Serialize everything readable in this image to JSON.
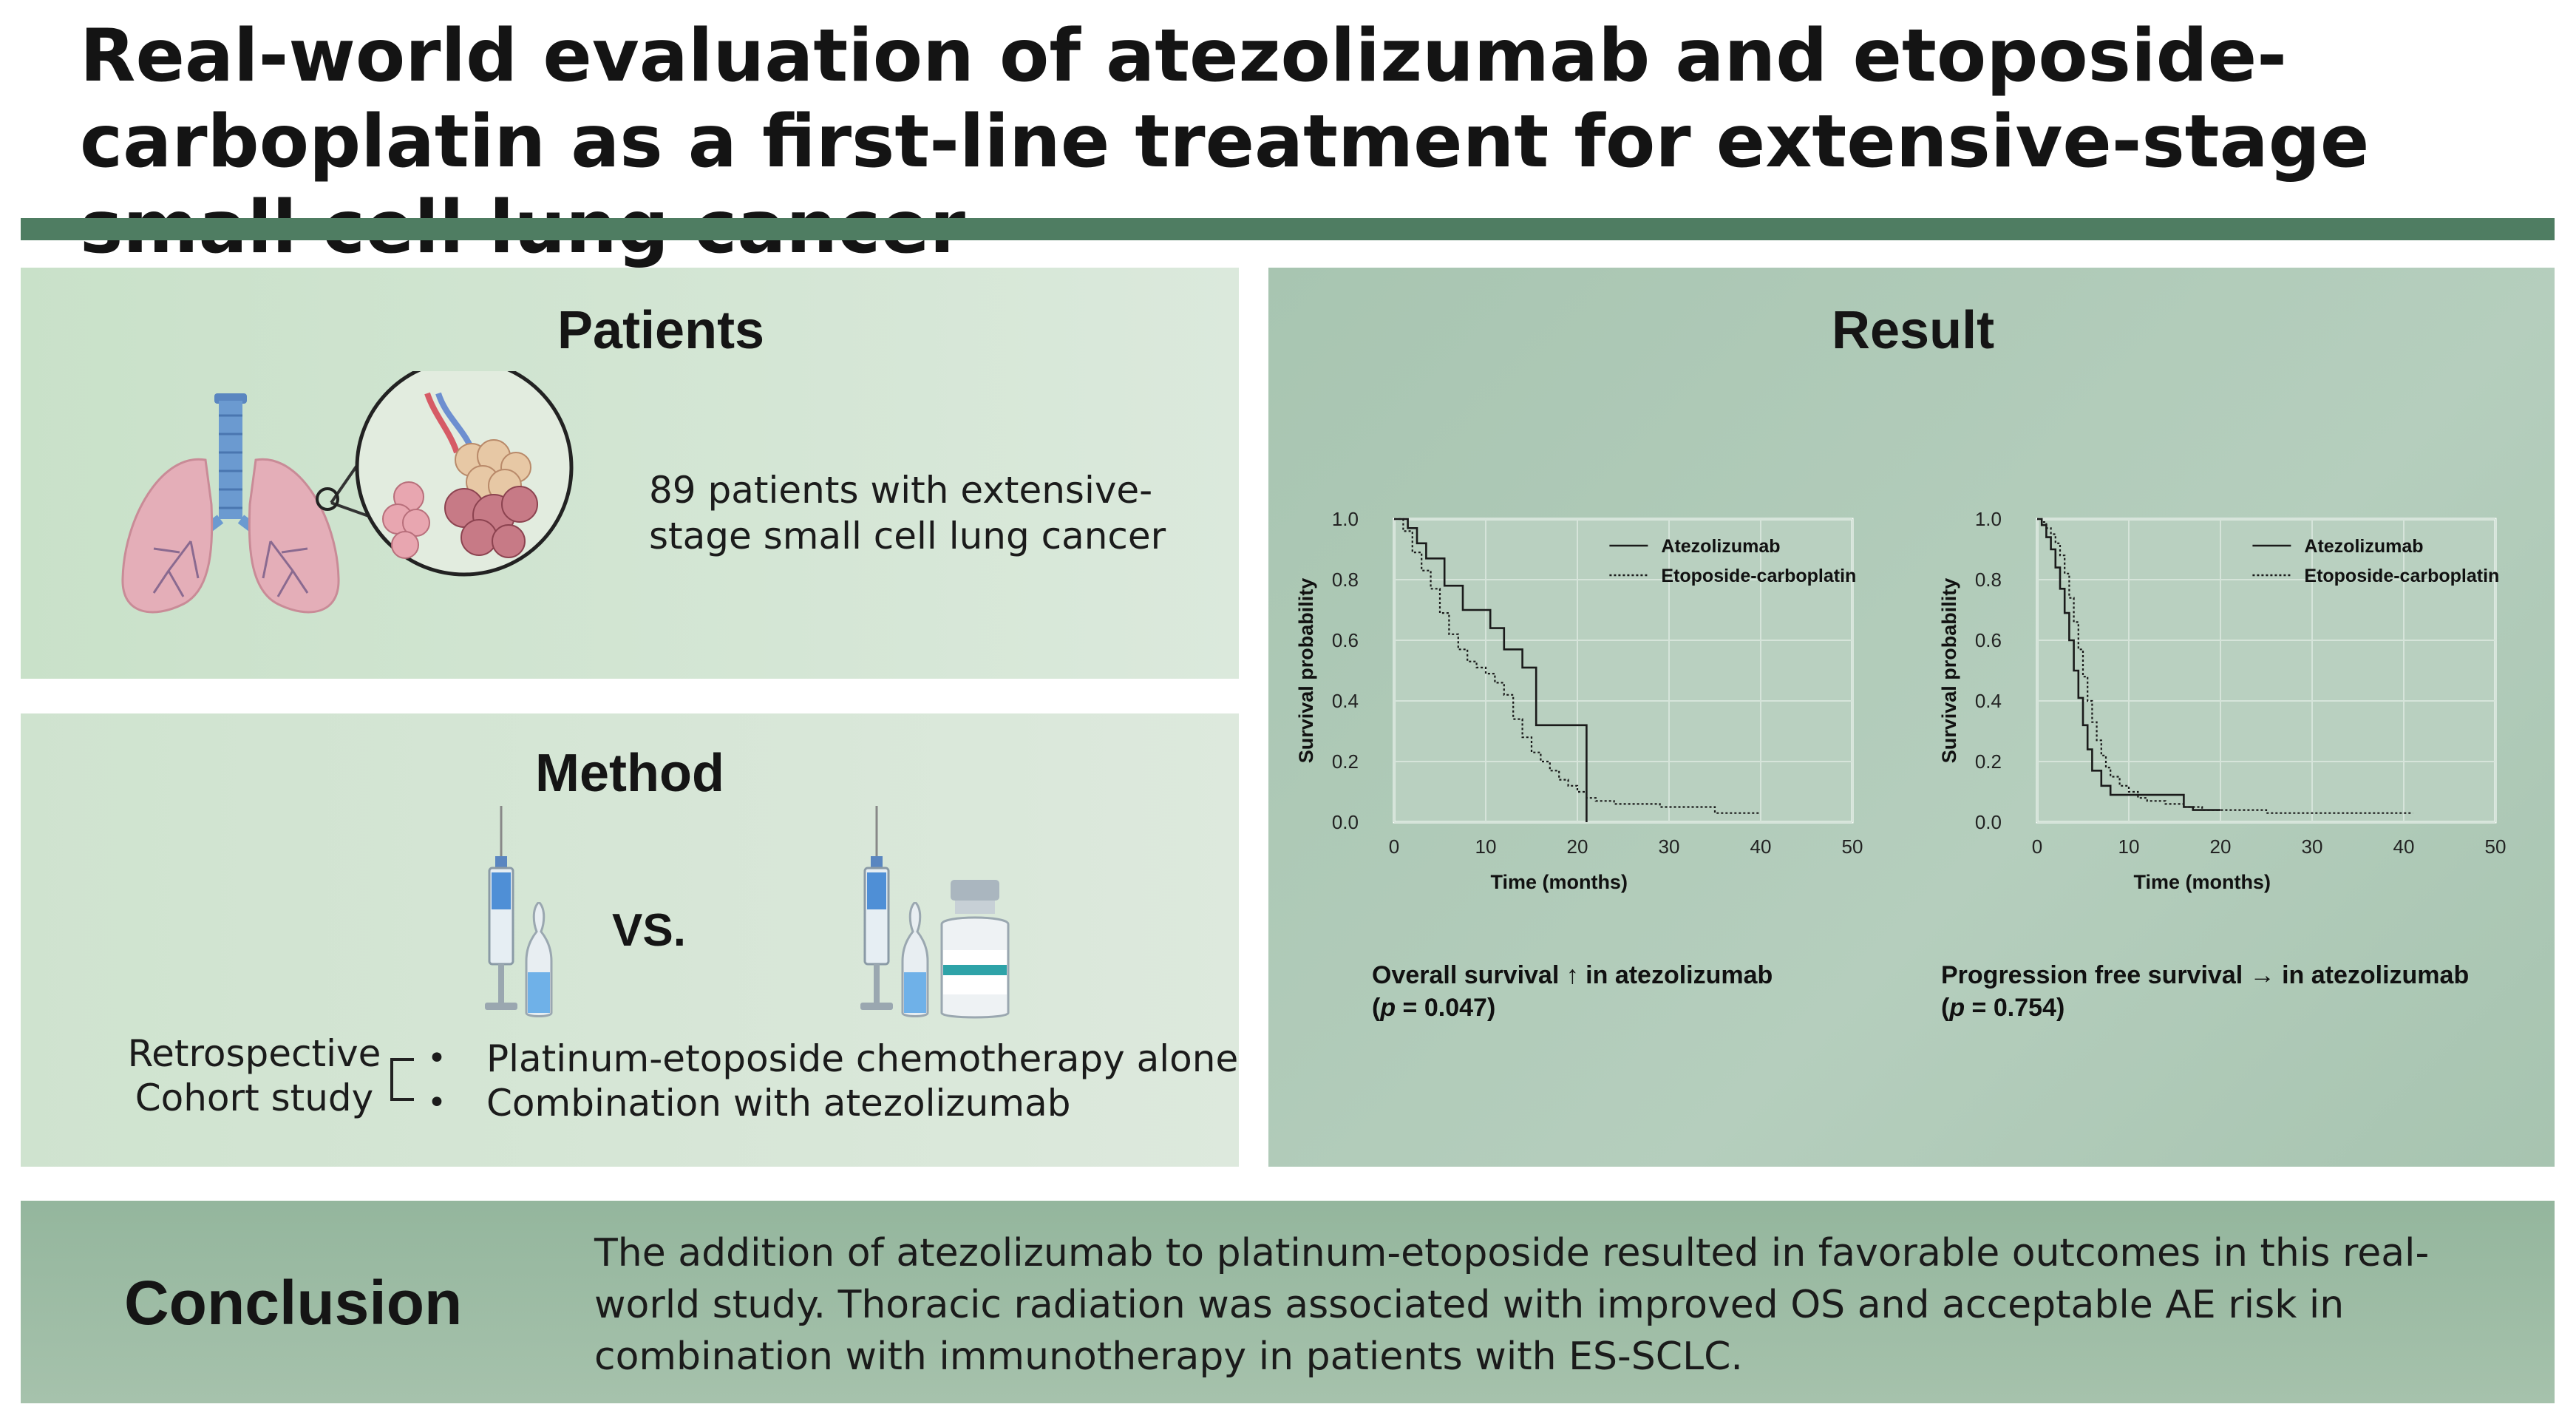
{
  "title": "Real-world evaluation of atezolizumab and etoposide-carboplatin as a first-line treatment for extensive-stage small cell lung cancer",
  "patients": {
    "header": "Patients",
    "description": "89 patients with extensive-stage small cell lung cancer",
    "icons": [
      "lungs-icon",
      "alveoli-magnifier-icon"
    ]
  },
  "method": {
    "header": "Method",
    "vs_label": "VS.",
    "design_line1": "Retrospective",
    "design_line2": "Cohort study",
    "arms": [
      "Platinum-etoposide chemotherapy alone",
      "Combination with atezolizumab"
    ],
    "icons": [
      "syringe-icon",
      "ampoule-icon",
      "drug-vial-icon"
    ]
  },
  "result": {
    "header": "Result",
    "os_caption_line1": "Overall survival ↑ in atezolizumab",
    "os_caption_p_label": "p",
    "os_caption_p_value": " = 0.047)",
    "pfs_caption_line1": "Progression free survival → in atezolizumab",
    "pfs_caption_p_label": "p",
    "pfs_caption_p_value": " = 0.754)"
  },
  "conclusion": {
    "header": "Conclusion",
    "line1": "The addition of atezolizumab to platinum-etoposide resulted in favorable outcomes in this real-",
    "line2": "world study. Thoracic radiation was associated with improved OS and acceptable AE risk in",
    "line3": "combination with immunotherapy in patients with ES-SCLC."
  },
  "colors": {
    "title_bar": "#4f7d62",
    "panel_light": "#d3e6d3",
    "panel_result": "#aec9b6",
    "panel_conclusion": "#9dbca4"
  },
  "chart_data": [
    {
      "type": "line",
      "xlabel": "Time (months)",
      "ylabel": "Survival probability",
      "xlim": [
        0,
        50
      ],
      "ylim": [
        0,
        1.0
      ],
      "xticks": [
        0,
        10,
        20,
        30,
        40,
        50
      ],
      "yticks": [
        0.0,
        0.2,
        0.4,
        0.6,
        0.8,
        1.0
      ],
      "legend_position": "top-right",
      "step": true,
      "series": [
        {
          "name": "Atezolizumab",
          "style": "solid",
          "x": [
            0,
            1.5,
            2.5,
            3.5,
            5.5,
            7.5,
            10.5,
            12,
            14,
            15.5,
            21,
            21
          ],
          "y": [
            1.0,
            0.97,
            0.92,
            0.87,
            0.78,
            0.7,
            0.64,
            0.57,
            0.51,
            0.32,
            0.32,
            0.0
          ]
        },
        {
          "name": "Etoposide-carboplatin",
          "style": "dotted",
          "x": [
            0,
            1,
            2,
            3,
            4,
            5,
            6,
            7,
            8,
            9,
            10,
            11,
            12,
            13,
            14,
            15,
            16,
            17,
            18,
            19,
            20,
            21,
            22,
            24,
            26,
            29,
            33,
            35,
            40
          ],
          "y": [
            1.0,
            0.96,
            0.89,
            0.83,
            0.77,
            0.69,
            0.62,
            0.57,
            0.53,
            0.51,
            0.49,
            0.46,
            0.42,
            0.34,
            0.28,
            0.23,
            0.2,
            0.17,
            0.14,
            0.12,
            0.1,
            0.08,
            0.07,
            0.06,
            0.06,
            0.05,
            0.05,
            0.03,
            0.03
          ]
        }
      ]
    },
    {
      "type": "line",
      "xlabel": "Time (months)",
      "ylabel": "Survival probability",
      "xlim": [
        0,
        50
      ],
      "ylim": [
        0,
        1.0
      ],
      "xticks": [
        0,
        10,
        20,
        30,
        40,
        50
      ],
      "yticks": [
        0.0,
        0.2,
        0.4,
        0.6,
        0.8,
        1.0
      ],
      "legend_position": "top-right",
      "step": true,
      "series": [
        {
          "name": "Atezolizumab",
          "style": "solid",
          "x": [
            0,
            0.5,
            1,
            1.5,
            2,
            2.5,
            3,
            3.5,
            4,
            4.5,
            5,
            5.5,
            6,
            7,
            8,
            10,
            12,
            16,
            17,
            20
          ],
          "y": [
            1.0,
            0.98,
            0.94,
            0.9,
            0.84,
            0.77,
            0.69,
            0.6,
            0.5,
            0.41,
            0.32,
            0.24,
            0.17,
            0.12,
            0.09,
            0.09,
            0.09,
            0.05,
            0.04,
            0.04
          ]
        },
        {
          "name": "Etoposide-carboplatin",
          "style": "dotted",
          "x": [
            0,
            0.5,
            1,
            1.5,
            2,
            2.5,
            3,
            3.5,
            4,
            4.5,
            5,
            5.5,
            6,
            6.5,
            7,
            7.5,
            8,
            9,
            10,
            11,
            12,
            14,
            16,
            18,
            25,
            41
          ],
          "y": [
            1.0,
            0.99,
            0.97,
            0.95,
            0.92,
            0.88,
            0.82,
            0.74,
            0.66,
            0.57,
            0.48,
            0.4,
            0.33,
            0.27,
            0.22,
            0.18,
            0.15,
            0.12,
            0.1,
            0.08,
            0.07,
            0.06,
            0.05,
            0.04,
            0.03,
            0.03
          ]
        }
      ]
    }
  ]
}
